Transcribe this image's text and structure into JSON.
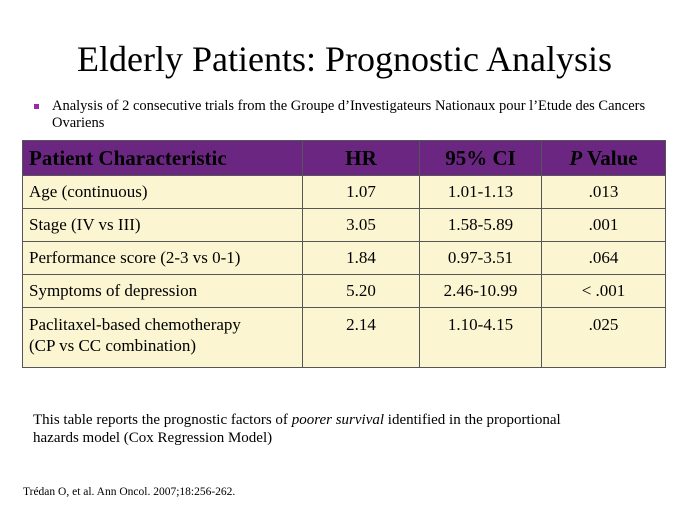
{
  "slide": {
    "title": "Elderly Patients: Prognostic Analysis",
    "bullet_text": "Analysis of 2 consecutive trials from the Groupe d’Investigateurs Nationaux pour l’Etude des Cancers Ovariens",
    "colors": {
      "bullet": "#9b2aa8",
      "header_bg": "#6b2682",
      "row_bg": "#fbf5d2"
    }
  },
  "table": {
    "headers": {
      "characteristic": "Patient Characteristic",
      "hr": "HR",
      "ci": "95% CI",
      "p_italic": "P",
      "p_rest": " Value"
    },
    "rows": [
      {
        "characteristic": "Age (continuous)",
        "hr": "1.07",
        "ci": "1.01-1.13",
        "p": ".013"
      },
      {
        "characteristic": "Stage (IV vs III)",
        "hr": "3.05",
        "ci": "1.58-5.89",
        "p": ".001"
      },
      {
        "characteristic": "Performance score (2-3 vs 0-1)",
        "hr": "1.84",
        "ci": "0.97-3.51",
        "p": ".064"
      },
      {
        "characteristic": "Symptoms of depression",
        "hr": "5.20",
        "ci": "2.46-10.99",
        "p": "< .001"
      },
      {
        "characteristic_line1": "Paclitaxel-based chemotherapy",
        "characteristic_line2": "(CP vs CC combination)",
        "hr": "2.14",
        "ci": "1.10-4.15",
        "p": ".025"
      }
    ]
  },
  "footnote": {
    "part1": "This table reports the prognostic factors of ",
    "emphasis": "poorer survival",
    "part2": " identified in the proportional hazards model (Cox Regression Model)"
  },
  "citation": "Trédan O, et al. Ann Oncol. 2007;18:256-262."
}
